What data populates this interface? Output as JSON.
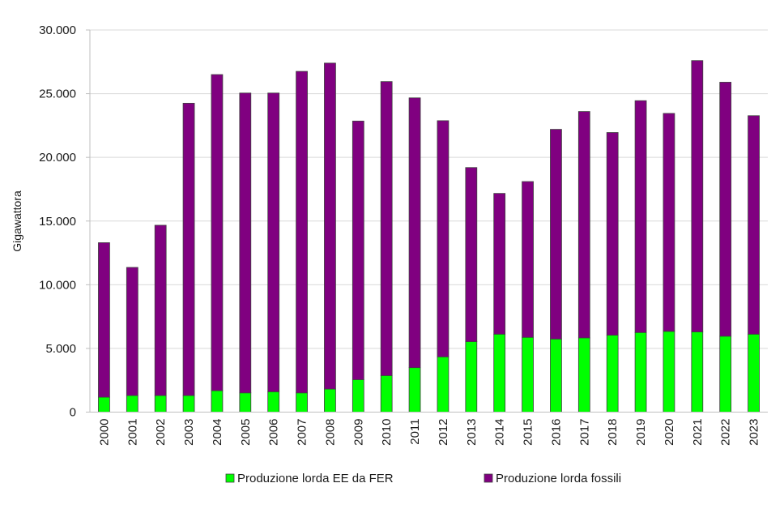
{
  "chart_data": {
    "type": "bar",
    "stacked": true,
    "title": "",
    "xlabel": "",
    "ylabel": "Gigawattora",
    "ylim": [
      0,
      30000
    ],
    "yticks": [
      0,
      5000,
      10000,
      15000,
      20000,
      25000,
      30000
    ],
    "ytick_labels": [
      "0",
      "5.000",
      "10.000",
      "15.000",
      "20.000",
      "25.000",
      "30.000"
    ],
    "grid": true,
    "legend_position": "bottom",
    "categories": [
      "2000",
      "2001",
      "2002",
      "2003",
      "2004",
      "2005",
      "2006",
      "2007",
      "2008",
      "2009",
      "2010",
      "2011",
      "2012",
      "2013",
      "2014",
      "2015",
      "2016",
      "2017",
      "2018",
      "2019",
      "2020",
      "2021",
      "2022",
      "2023"
    ],
    "series": [
      {
        "name": "Produzione lorda EE da FER",
        "color": "#00ff00",
        "values": [
          1170,
          1300,
          1300,
          1300,
          1680,
          1510,
          1600,
          1510,
          1810,
          2550,
          2870,
          3490,
          4340,
          5530,
          6120,
          5870,
          5740,
          5830,
          6040,
          6250,
          6340,
          6300,
          5960,
          6120
        ]
      },
      {
        "name": "Produzione lorda fossili",
        "color": "#800080",
        "values": [
          12130,
          10060,
          13370,
          22950,
          24820,
          23540,
          23450,
          25240,
          25590,
          20300,
          23080,
          21180,
          18540,
          13670,
          11050,
          12230,
          16460,
          17770,
          15910,
          18200,
          17110,
          21300,
          19940,
          17150
        ]
      }
    ],
    "totals": [
      13300,
      11360,
      14670,
      24250,
      26500,
      25050,
      25050,
      26750,
      27400,
      22850,
      25950,
      24670,
      22880,
      19200,
      17170,
      18100,
      22200,
      23600,
      21950,
      24450,
      23450,
      27600,
      25900,
      23270
    ]
  }
}
